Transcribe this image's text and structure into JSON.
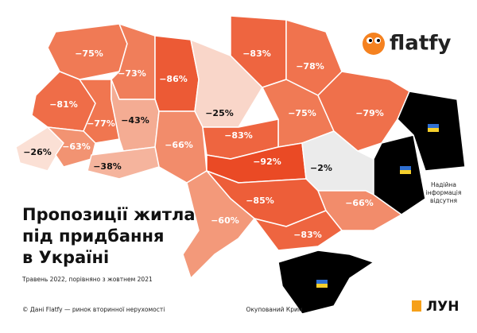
{
  "brand": "flatfy",
  "title": [
    "Пропозиції житла",
    "під придбання",
    "в Україні"
  ],
  "subtitle": "Травень 2022, порівняно з жовтнем 2021",
  "source": "© Дані Flatfy — ринок вторинної нерухомості",
  "crimea_note": "Окупований Крим",
  "no_data_note": [
    "Надійна",
    "інформація",
    "відсутня"
  ],
  "logo": "ЛУН",
  "regions": [
    {
      "label": "−75%",
      "color": "#f07a55"
    },
    {
      "label": "−73%",
      "color": "#f07e5a"
    },
    {
      "label": "−86%",
      "color": "#ec5a35"
    },
    {
      "label": "−25%",
      "color": "#f9d6c9"
    },
    {
      "label": "−83%",
      "color": "#ee6540"
    },
    {
      "label": "−78%",
      "color": "#f0734e"
    },
    {
      "label": "−81%",
      "color": "#ef6d48"
    },
    {
      "label": "−77%",
      "color": "#f07650"
    },
    {
      "label": "−43%",
      "color": "#f4ac93"
    },
    {
      "label": "−66%",
      "color": "#f28c6b"
    },
    {
      "label": "−75%",
      "color": "#f07a55"
    },
    {
      "label": "−79%",
      "color": "#ef704b"
    },
    {
      "label": "−83%",
      "color": "#ee6540"
    },
    {
      "label": "−26%",
      "color": "#fbe0d5"
    },
    {
      "label": "−63%",
      "color": "#f29372"
    },
    {
      "label": "−38%",
      "color": "#f5b49d"
    },
    {
      "label": "−92%",
      "color": "#ea4a25"
    },
    {
      "label": "−2%",
      "color": "#ebebeb"
    },
    {
      "label": "−85%",
      "color": "#ed5e39"
    },
    {
      "label": "−60%",
      "color": "#f3997a"
    },
    {
      "label": "−66%",
      "color": "#f28c6b"
    },
    {
      "label": "−83%",
      "color": "#ee6540"
    }
  ]
}
